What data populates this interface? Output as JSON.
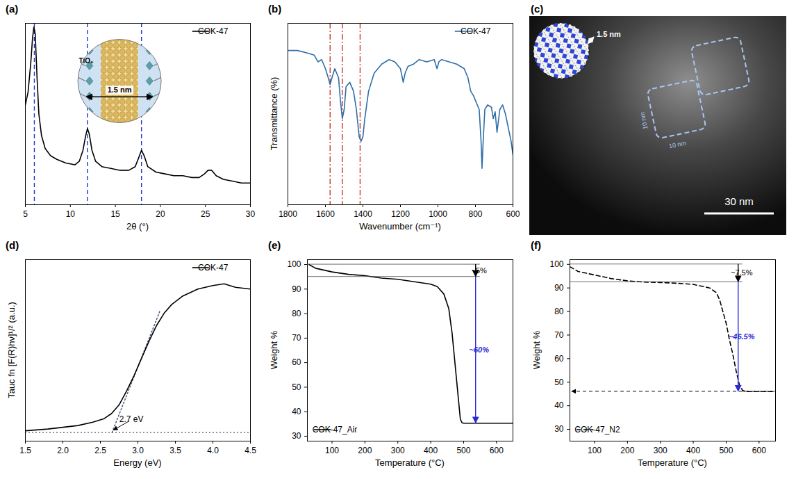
{
  "chart_data": [
    {
      "type": "line",
      "title": "(a)",
      "x_label": "2θ (°)",
      "x": [
        5,
        5.3,
        5.6,
        5.8,
        5.95,
        6.1,
        6.3,
        6.5,
        6.8,
        7.2,
        7.8,
        8.5,
        9.5,
        10.5,
        11,
        11.4,
        11.7,
        11.9,
        12.1,
        12.4,
        12.8,
        13.5,
        14.5,
        15.5,
        16.5,
        17.2,
        17.6,
        17.9,
        18.2,
        18.6,
        19.5,
        20.5,
        21.5,
        22.5,
        23.5,
        24.3,
        24.9,
        25.3,
        25.7,
        26.2,
        27,
        28,
        29,
        30
      ],
      "series": [
        {
          "name": "COK-47",
          "color": "#000000",
          "line_style": "solid",
          "values": [
            55,
            62,
            78,
            92,
            98,
            94,
            70,
            50,
            38,
            31,
            27,
            25,
            23,
            22,
            24,
            30,
            38,
            42,
            39,
            30,
            24,
            21,
            20,
            19,
            19,
            21,
            26,
            30,
            27,
            21,
            18,
            17,
            16,
            16,
            15,
            15,
            17,
            19,
            19,
            16,
            14,
            13,
            12,
            12
          ]
        }
      ],
      "xlim": [
        5,
        30
      ],
      "xticks": [
        5,
        10,
        15,
        20,
        25,
        30
      ],
      "ylim": [
        0,
        100
      ],
      "yticks": [],
      "tick_labels": "x",
      "legend": "top-right",
      "vlines": {
        "x": [
          6,
          11.9,
          17.9
        ],
        "color": "#1f35c9",
        "line_style": "dashed"
      },
      "inset_labels": [
        "TiO₆",
        "1.5 nm"
      ]
    },
    {
      "type": "line",
      "title": "(b)",
      "x_label": "Wavenumber (cm⁻¹)",
      "y_label": "Transmittance (%)",
      "x": [
        1800,
        1750,
        1700,
        1660,
        1640,
        1620,
        1600,
        1585,
        1575,
        1565,
        1550,
        1530,
        1520,
        1510,
        1500,
        1490,
        1470,
        1450,
        1435,
        1420,
        1410,
        1400,
        1390,
        1370,
        1340,
        1300,
        1260,
        1230,
        1200,
        1185,
        1175,
        1160,
        1130,
        1100,
        1060,
        1020,
        1005,
        995,
        980,
        940,
        900,
        860,
        840,
        825,
        810,
        795,
        780,
        770,
        765,
        760,
        750,
        735,
        715,
        705,
        695,
        685,
        670,
        655,
        640,
        625,
        610,
        600
      ],
      "series": [
        {
          "name": "COK-47",
          "color": "#2f6ea8",
          "line_style": "solid",
          "values": [
            88,
            88,
            87,
            86,
            83,
            84,
            80,
            76,
            73,
            76,
            80,
            76,
            66,
            58,
            62,
            72,
            74,
            70,
            62,
            50,
            48,
            50,
            58,
            70,
            78,
            82,
            84,
            83,
            80,
            74,
            78,
            81,
            82,
            84,
            83,
            84,
            80,
            83,
            84,
            83,
            82,
            80,
            76,
            70,
            68,
            65,
            62,
            48,
            36,
            46,
            62,
            64,
            63,
            58,
            61,
            52,
            62,
            64,
            60,
            54,
            48,
            42
          ]
        }
      ],
      "xlim": [
        1800,
        600
      ],
      "xticks": [
        1800,
        1600,
        1400,
        1200,
        1000,
        800,
        600
      ],
      "ylim": [
        20,
        100
      ],
      "yticks": [],
      "tick_labels": "x",
      "legend": "top-right",
      "vlines": {
        "x": [
          1575,
          1510,
          1415
        ],
        "color": "#c8372d",
        "line_style": "dashdot"
      }
    },
    {
      "type": "line",
      "title": "(d)",
      "x_label": "Energy (eV)",
      "y_label": "Tauc fn [F(R)hν]¹/² (a.u.)",
      "x": [
        1.5,
        1.8,
        2,
        2.2,
        2.4,
        2.55,
        2.65,
        2.75,
        2.85,
        2.95,
        3.05,
        3.15,
        3.25,
        3.35,
        3.45,
        3.6,
        3.8,
        4,
        4.15,
        4.3,
        4.5
      ],
      "series": [
        {
          "name": "COK-47",
          "color": "#000000",
          "line_style": "solid",
          "values": [
            6,
            7,
            8,
            9,
            11,
            13,
            16,
            21,
            29,
            38,
            48,
            58,
            67,
            74,
            79,
            84,
            88,
            90,
            91,
            89,
            88
          ]
        }
      ],
      "xlim": [
        1.5,
        4.5
      ],
      "xticks": [
        1.5,
        {
          "value": 2,
          "label": "2.0"
        },
        2.5,
        {
          "value": 3,
          "label": "3.0"
        },
        3.5,
        {
          "value": 4,
          "label": "4.0"
        },
        4.5
      ],
      "ylim": [
        0,
        105
      ],
      "yticks": [],
      "tick_labels": "x",
      "legend": "top-right",
      "baseline": {
        "y": 5
      },
      "tangent": {
        "x": [
          2.655,
          3.3
        ],
        "y": [
          5,
          76
        ]
      },
      "annotations": [
        {
          "text": "2.7 eV",
          "x": 2.65,
          "y": 5
        }
      ]
    },
    {
      "type": "line",
      "title": "(e)",
      "x_label": "Temperature (°C)",
      "y_label": "Weight %",
      "x": [
        30,
        50,
        100,
        150,
        200,
        250,
        300,
        350,
        400,
        420,
        440,
        455,
        465,
        475,
        485,
        490,
        495,
        500,
        550,
        650
      ],
      "series": [
        {
          "name": "COK-47_Air",
          "color": "#000000",
          "line_style": "solid",
          "values": [
            100,
            98.5,
            97,
            96,
            95.5,
            94.5,
            94,
            93,
            92,
            91,
            88,
            82,
            72,
            58,
            44,
            37,
            35.5,
            35.3,
            35.3,
            35.3
          ]
        }
      ],
      "xlim": [
        25,
        650
      ],
      "xticks": [
        100,
        200,
        300,
        400,
        500,
        600
      ],
      "ylim": [
        28,
        102
      ],
      "yticks": [
        30,
        40,
        50,
        60,
        70,
        80,
        90,
        100
      ],
      "legend": "bottom-left",
      "steps": [
        {
          "from": 100,
          "to": 95,
          "label": "~5%",
          "color": "#000000"
        },
        {
          "from": 95,
          "to": 35.3,
          "label": "~60%",
          "color": "#2a2ad8"
        }
      ]
    },
    {
      "type": "line",
      "title": "(f)",
      "x_label": "Temperature (°C)",
      "y_label": "Weight %",
      "x": [
        25,
        50,
        100,
        150,
        200,
        250,
        300,
        350,
        400,
        450,
        470,
        480,
        490,
        500,
        510,
        520,
        530,
        540,
        550,
        560,
        650
      ],
      "series": [
        {
          "name": "COK-47_N2",
          "color": "#000000",
          "line_style": "dashed",
          "values": [
            99,
            97,
            95.5,
            94,
            93,
            92.5,
            92.3,
            92,
            91.5,
            90,
            88,
            85,
            80,
            75,
            68,
            62,
            55,
            49,
            46.5,
            46,
            46
          ]
        }
      ],
      "xlim": [
        25,
        650
      ],
      "xticks": [
        100,
        200,
        300,
        400,
        500,
        600
      ],
      "ylim": [
        25,
        102
      ],
      "yticks": [
        30,
        40,
        50,
        60,
        70,
        80,
        90,
        100
      ],
      "legend": "bottom-left",
      "steps": [
        {
          "from": 100,
          "to": 92.5,
          "label": "~7.5%",
          "color": "#000000"
        },
        {
          "from": 92.5,
          "to": 46,
          "label": "~46.5%",
          "color": "#2a2ad8"
        }
      ],
      "hline": 46
    }
  ],
  "image_panel": {
    "title": "(c)",
    "labels": [
      "1.5 nm",
      "10 nm",
      "10 nm",
      "30 nm"
    ]
  }
}
